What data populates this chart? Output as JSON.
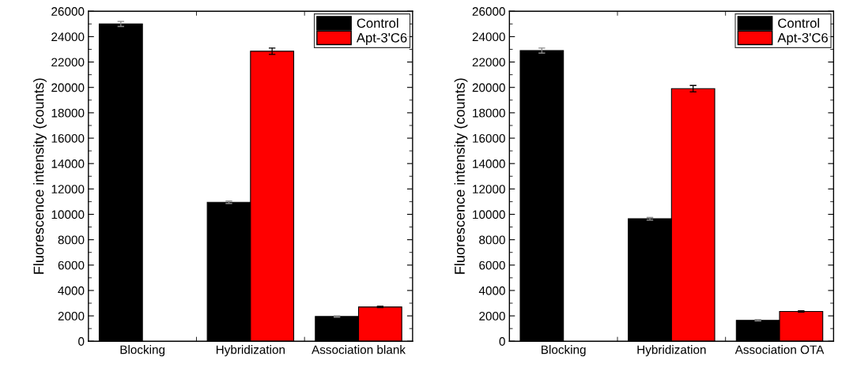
{
  "chart_data": [
    {
      "type": "bar",
      "ylabel": "Fluorescence intensity (counts)",
      "categories": [
        "Blocking",
        "Hybridization",
        "Association blank"
      ],
      "ylim": [
        0,
        26000
      ],
      "yticks": [
        0,
        2000,
        4000,
        6000,
        8000,
        10000,
        12000,
        14000,
        16000,
        18000,
        20000,
        22000,
        24000,
        26000
      ],
      "legend": "top right",
      "grid": false,
      "series": [
        {
          "name": "Control",
          "color": "#000000",
          "values": [
            25000,
            10950,
            1950
          ],
          "errors": [
            200,
            100,
            50
          ]
        },
        {
          "name": "Apt-3'C6",
          "color": "#ff0000",
          "values": [
            null,
            22850,
            2700
          ],
          "errors": [
            null,
            250,
            50
          ]
        }
      ]
    },
    {
      "type": "bar",
      "ylabel": "Fluorescence intensity (counts)",
      "categories": [
        "Blocking",
        "Hybridization",
        "Association OTA"
      ],
      "ylim": [
        0,
        26000
      ],
      "yticks": [
        0,
        2000,
        4000,
        6000,
        8000,
        10000,
        12000,
        14000,
        16000,
        18000,
        20000,
        22000,
        24000,
        26000
      ],
      "legend": "top right",
      "grid": false,
      "series": [
        {
          "name": "Control",
          "color": "#000000",
          "values": [
            22900,
            9650,
            1650
          ],
          "errors": [
            200,
            100,
            50
          ]
        },
        {
          "name": "Apt-3'C6",
          "color": "#ff0000",
          "values": [
            null,
            19900,
            2350
          ],
          "errors": [
            null,
            250,
            50
          ]
        }
      ]
    }
  ]
}
